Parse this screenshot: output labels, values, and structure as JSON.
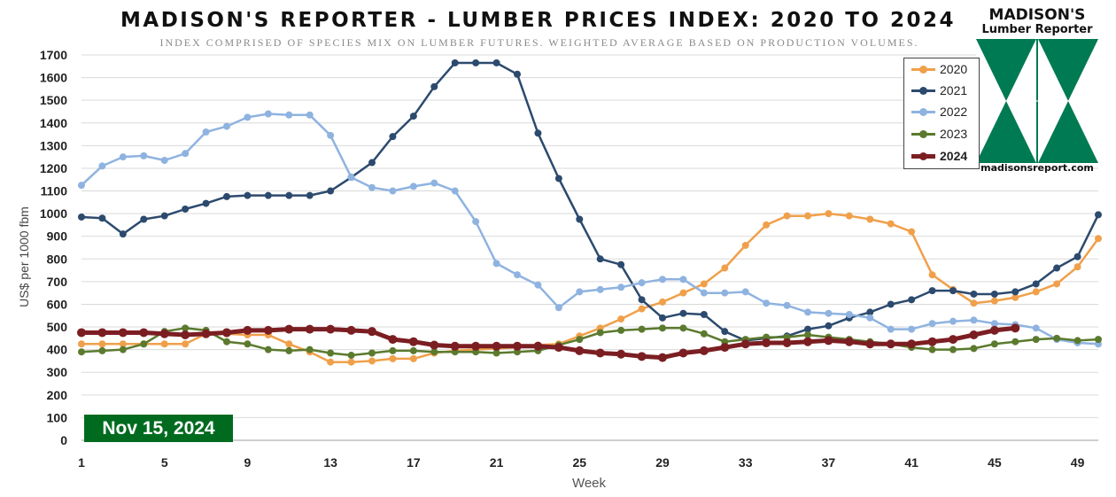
{
  "header": {
    "title": "MADISON'S REPORTER - LUMBER PRICES INDEX: 2020 TO 2024",
    "subtitle": "INDEX COMPRISED OF SPECIES MIX ON LUMBER FUTURES. WEIGHTED AVERAGE BASED ON PRODUCTION VOLUMES."
  },
  "badge": {
    "date": "Nov 15, 2024",
    "color": "#006b1f"
  },
  "logo": {
    "name": "MADISON'S",
    "subname": "Lumber Reporter",
    "url": "madisonsreport.com",
    "color": "#007a52"
  },
  "chart_data": {
    "type": "line",
    "title": "MADISON'S REPORTER - LUMBER PRICES INDEX: 2020 TO 2024",
    "xlabel": "Week",
    "ylabel": "US$ per 1000 fbm",
    "xlim": [
      1,
      50
    ],
    "ylim": [
      0,
      1700
    ],
    "x_ticks": [
      1,
      5,
      9,
      13,
      17,
      21,
      25,
      29,
      33,
      37,
      41,
      45,
      49
    ],
    "y_ticks": [
      0,
      100,
      200,
      300,
      400,
      500,
      600,
      700,
      800,
      900,
      1000,
      1100,
      1200,
      1300,
      1400,
      1500,
      1600,
      1700
    ],
    "grid": "horizontal",
    "legend_position": "top-right",
    "series": [
      {
        "name": "2020",
        "color": "#f0a04b",
        "width": 2.5,
        "x": [
          1,
          2,
          3,
          4,
          5,
          6,
          7,
          8,
          9,
          10,
          11,
          12,
          13,
          14,
          15,
          16,
          17,
          18,
          19,
          20,
          21,
          22,
          23,
          24,
          25,
          26,
          27,
          28,
          29,
          30,
          31,
          32,
          33,
          34,
          35,
          36,
          37,
          38,
          39,
          40,
          41,
          42,
          43,
          44,
          45,
          46,
          47,
          48,
          49,
          50
        ],
        "values": [
          425,
          425,
          425,
          425,
          425,
          425,
          470,
          470,
          465,
          465,
          425,
          390,
          345,
          345,
          350,
          360,
          360,
          385,
          395,
          400,
          405,
          410,
          420,
          425,
          460,
          495,
          535,
          580,
          610,
          650,
          690,
          760,
          860,
          950,
          990,
          990,
          1000,
          990,
          975,
          955,
          920,
          730,
          665,
          605,
          615,
          630,
          655,
          690,
          765,
          890
        ]
      },
      {
        "name": "2021",
        "color": "#2c4a6e",
        "width": 2.5,
        "x": [
          1,
          2,
          3,
          4,
          5,
          6,
          7,
          8,
          9,
          10,
          11,
          12,
          13,
          14,
          15,
          16,
          17,
          18,
          19,
          20,
          21,
          22,
          23,
          24,
          25,
          26,
          27,
          28,
          29,
          30,
          31,
          32,
          33,
          34,
          35,
          36,
          37,
          38,
          39,
          40,
          41,
          42,
          43,
          44,
          45,
          46,
          47,
          48,
          49,
          50
        ],
        "values": [
          985,
          980,
          910,
          975,
          990,
          1020,
          1045,
          1075,
          1080,
          1080,
          1080,
          1080,
          1100,
          1160,
          1225,
          1340,
          1430,
          1560,
          1665,
          1665,
          1665,
          1615,
          1355,
          1155,
          975,
          800,
          775,
          620,
          540,
          560,
          555,
          480,
          440,
          450,
          460,
          490,
          505,
          540,
          565,
          600,
          620,
          660,
          660,
          645,
          645,
          655,
          690,
          760,
          810,
          995
        ]
      },
      {
        "name": "2022",
        "color": "#8fb3e0",
        "width": 2.5,
        "x": [
          1,
          2,
          3,
          4,
          5,
          6,
          7,
          8,
          9,
          10,
          11,
          12,
          13,
          14,
          15,
          16,
          17,
          18,
          19,
          20,
          21,
          22,
          23,
          24,
          25,
          26,
          27,
          28,
          29,
          30,
          31,
          32,
          33,
          34,
          35,
          36,
          37,
          38,
          39,
          40,
          41,
          42,
          43,
          44,
          45,
          46,
          47,
          48,
          49,
          50
        ],
        "values": [
          1125,
          1210,
          1250,
          1255,
          1235,
          1265,
          1360,
          1385,
          1425,
          1440,
          1435,
          1435,
          1345,
          1160,
          1115,
          1100,
          1120,
          1135,
          1100,
          965,
          780,
          730,
          685,
          585,
          655,
          665,
          675,
          695,
          710,
          710,
          650,
          650,
          655,
          605,
          595,
          565,
          560,
          555,
          540,
          490,
          490,
          515,
          525,
          530,
          515,
          510,
          495,
          445,
          430,
          425
        ]
      },
      {
        "name": "2023",
        "color": "#5b7a2e",
        "width": 2.5,
        "x": [
          1,
          2,
          3,
          4,
          5,
          6,
          7,
          8,
          9,
          10,
          11,
          12,
          13,
          14,
          15,
          16,
          17,
          18,
          19,
          20,
          21,
          22,
          23,
          24,
          25,
          26,
          27,
          28,
          29,
          30,
          31,
          32,
          33,
          34,
          35,
          36,
          37,
          38,
          39,
          40,
          41,
          42,
          43,
          44,
          45,
          46,
          47,
          48,
          49,
          50
        ],
        "values": [
          390,
          395,
          400,
          425,
          480,
          495,
          485,
          435,
          425,
          400,
          395,
          400,
          385,
          375,
          385,
          395,
          395,
          390,
          390,
          390,
          385,
          390,
          395,
          420,
          445,
          475,
          485,
          490,
          495,
          495,
          470,
          435,
          445,
          455,
          455,
          465,
          455,
          445,
          435,
          425,
          410,
          400,
          400,
          405,
          425,
          435,
          445,
          450,
          440,
          445
        ]
      },
      {
        "name": "2024",
        "color": "#7b1e22",
        "width": 5,
        "x": [
          1,
          2,
          3,
          4,
          5,
          6,
          7,
          8,
          9,
          10,
          11,
          12,
          13,
          14,
          15,
          16,
          17,
          18,
          19,
          20,
          21,
          22,
          23,
          24,
          25,
          26,
          27,
          28,
          29,
          30,
          31,
          32,
          33,
          34,
          35,
          36,
          37,
          38,
          39,
          40,
          41,
          42,
          43,
          44,
          45,
          46
        ],
        "values": [
          475,
          475,
          475,
          475,
          470,
          465,
          470,
          475,
          485,
          485,
          490,
          490,
          490,
          485,
          480,
          445,
          435,
          420,
          415,
          415,
          415,
          415,
          415,
          410,
          395,
          385,
          380,
          370,
          365,
          385,
          395,
          410,
          425,
          430,
          430,
          435,
          440,
          435,
          425,
          425,
          425,
          435,
          445,
          465,
          485,
          495
        ]
      }
    ]
  }
}
